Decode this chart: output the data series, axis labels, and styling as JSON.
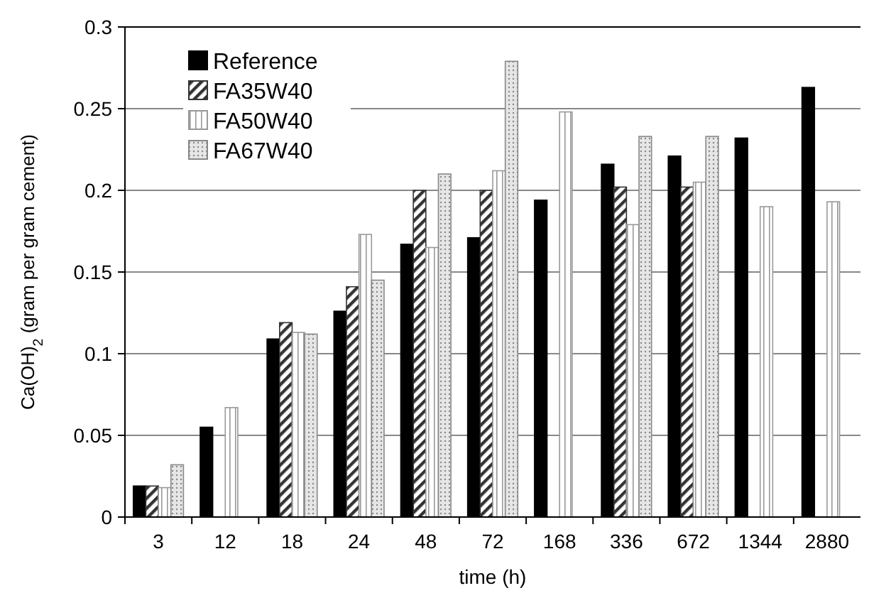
{
  "chart_data": {
    "type": "bar",
    "xlabel": "time (h)",
    "ylabel": "Ca(OH)$_{2}$ (gram per gram cement)",
    "categories": [
      "3",
      "12",
      "18",
      "24",
      "48",
      "72",
      "168",
      "336",
      "672",
      "1344",
      "2880"
    ],
    "series": [
      {
        "name": "Reference",
        "color": "#000000",
        "values": [
          0.019,
          0.055,
          0.109,
          0.126,
          0.167,
          0.171,
          0.194,
          0.216,
          0.221,
          0.232,
          0.263
        ]
      },
      {
        "name": "FA35W40",
        "color": "#333333",
        "values": [
          0.019,
          null,
          0.119,
          0.141,
          0.2,
          0.2,
          null,
          0.202,
          0.202,
          null,
          null
        ]
      },
      {
        "name": "FA50W40",
        "color": "#999999",
        "values": [
          0.018,
          0.067,
          0.113,
          0.173,
          0.165,
          0.212,
          0.248,
          0.179,
          0.205,
          0.19,
          0.193
        ]
      },
      {
        "name": "FA67W40",
        "color": "#888888",
        "values": [
          0.032,
          null,
          0.112,
          0.145,
          0.21,
          0.279,
          null,
          0.233,
          0.233,
          null,
          null
        ]
      }
    ],
    "ylim": [
      0,
      0.3
    ],
    "yticks": [
      0,
      0.05,
      0.1,
      0.15,
      0.2,
      0.25,
      0.3
    ],
    "grid": "y",
    "legend": "top left"
  }
}
